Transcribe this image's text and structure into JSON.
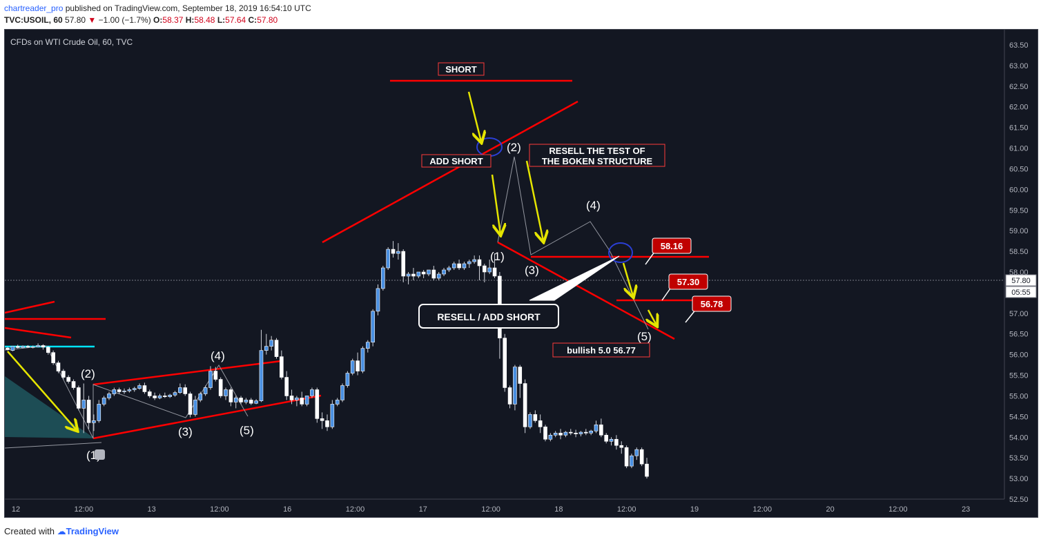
{
  "header": {
    "user": "chartreader_pro",
    "published_text": " published on TradingView.com, September 18, 2019 16:54:10 UTC",
    "symbol": "TVC:USOIL, 60",
    "last": "57.80",
    "change_arrow": "▼",
    "change": "−1.00 (−1.7%)",
    "o_label": "O:",
    "o": "58.37",
    "h_label": "H:",
    "h": "58.48",
    "l_label": "L:",
    "l": "57.64",
    "c_label": "C:",
    "c": "57.80"
  },
  "footer": {
    "created_with": "Created with",
    "brand": "TradingView"
  },
  "chart_data": {
    "type": "candlestick",
    "title": "CFDs on WTI Crude Oil, 60, TVC",
    "y_ticks": [
      "63.50",
      "63.00",
      "62.50",
      "62.00",
      "61.50",
      "61.00",
      "60.50",
      "60.00",
      "59.50",
      "59.00",
      "58.50",
      "58.00",
      "57.50",
      "57.00",
      "56.50",
      "56.00",
      "55.50",
      "55.00",
      "54.50",
      "54.00",
      "53.50",
      "53.00",
      "52.50"
    ],
    "ylim": [
      52.5,
      63.5
    ],
    "x_ticks": [
      "12",
      "12:00",
      "13",
      "12:00",
      "16",
      "12:00",
      "17",
      "12:00",
      "18",
      "12:00",
      "19",
      "12:00",
      "20",
      "12:00",
      "23"
    ],
    "last_price": "57.80",
    "countdown": "05:55",
    "candles": [
      [
        6.16,
        6.19,
        6.12,
        6.1
      ],
      [
        6.1,
        6.14,
        6.2,
        6.08
      ],
      [
        6.2,
        6.24,
        6.17,
        6.15
      ],
      [
        6.17,
        6.22,
        6.2,
        6.15
      ],
      [
        6.2,
        6.23,
        6.18,
        6.16
      ],
      [
        6.18,
        6.22,
        6.19,
        6.15
      ],
      [
        6.19,
        6.27,
        6.22,
        6.18
      ],
      [
        6.22,
        6.25,
        6.18,
        6.12
      ],
      [
        6.18,
        6.21,
        6.05,
        6.0
      ],
      [
        6.05,
        6.1,
        5.8,
        5.75
      ],
      [
        5.8,
        5.85,
        5.6,
        5.55
      ],
      [
        5.6,
        5.65,
        5.45,
        5.4
      ],
      [
        5.45,
        5.5,
        5.35,
        5.3
      ],
      [
        5.35,
        5.4,
        5.2,
        5.15
      ],
      [
        5.2,
        5.25,
        4.7,
        4.65
      ],
      [
        4.7,
        5.3,
        4.9,
        4.1
      ],
      [
        4.9,
        5.0,
        4.35,
        4.2
      ],
      [
        4.35,
        4.55,
        4.4,
        4.15
      ],
      [
        4.4,
        4.9,
        4.8,
        4.35
      ],
      [
        4.8,
        5.0,
        4.95,
        4.75
      ],
      [
        4.95,
        5.1,
        5.05,
        4.9
      ],
      [
        5.05,
        5.2,
        5.15,
        5.0
      ],
      [
        5.15,
        5.2,
        5.1,
        5.05
      ],
      [
        5.1,
        5.18,
        5.12,
        5.05
      ],
      [
        5.12,
        5.2,
        5.15,
        5.08
      ],
      [
        5.15,
        5.22,
        5.18,
        5.1
      ],
      [
        5.18,
        5.3,
        5.25,
        5.15
      ],
      [
        5.25,
        5.32,
        5.1,
        5.05
      ],
      [
        5.1,
        5.15,
        5.0,
        4.95
      ],
      [
        5.0,
        5.08,
        4.95,
        4.9
      ],
      [
        4.95,
        5.05,
        5.0,
        4.92
      ],
      [
        5.0,
        5.08,
        4.98,
        4.95
      ],
      [
        4.98,
        5.05,
        5.02,
        4.95
      ],
      [
        5.02,
        5.12,
        5.08,
        4.98
      ],
      [
        5.08,
        5.3,
        5.2,
        5.05
      ],
      [
        5.2,
        5.28,
        5.05,
        5.0
      ],
      [
        5.05,
        5.1,
        4.55,
        4.48
      ],
      [
        4.55,
        5.0,
        4.9,
        4.5
      ],
      [
        4.9,
        5.1,
        5.05,
        4.85
      ],
      [
        5.05,
        5.25,
        5.2,
        5.0
      ],
      [
        5.2,
        5.72,
        5.6,
        5.15
      ],
      [
        5.6,
        5.7,
        5.4,
        5.35
      ],
      [
        5.4,
        5.45,
        5.0,
        4.95
      ],
      [
        5.0,
        5.2,
        5.15,
        4.9
      ],
      [
        5.15,
        5.2,
        4.85,
        4.75
      ],
      [
        4.85,
        5.0,
        4.95,
        4.7
      ],
      [
        4.95,
        5.0,
        4.85,
        4.8
      ],
      [
        4.85,
        4.95,
        4.9,
        4.8
      ],
      [
        4.9,
        4.95,
        4.82,
        4.78
      ],
      [
        4.82,
        4.92,
        4.88,
        4.8
      ],
      [
        4.88,
        6.6,
        6.1,
        4.85
      ],
      [
        6.1,
        6.5,
        6.2,
        6.0
      ],
      [
        6.2,
        6.45,
        6.35,
        6.1
      ],
      [
        6.35,
        6.4,
        5.95,
        5.9
      ],
      [
        5.95,
        6.1,
        5.45,
        5.4
      ],
      [
        5.45,
        5.6,
        5.0,
        4.9
      ],
      [
        5.0,
        5.15,
        4.9,
        4.8
      ],
      [
        4.9,
        5.0,
        4.95,
        4.75
      ],
      [
        4.95,
        5.1,
        4.8,
        4.75
      ],
      [
        4.8,
        5.0,
        5.0,
        4.75
      ],
      [
        5.0,
        5.2,
        5.15,
        4.95
      ],
      [
        5.15,
        5.2,
        4.45,
        4.35
      ],
      [
        4.45,
        4.6,
        4.4,
        4.2
      ],
      [
        4.4,
        4.55,
        4.25,
        4.15
      ],
      [
        4.25,
        4.9,
        4.8,
        4.2
      ],
      [
        4.8,
        4.95,
        4.9,
        4.75
      ],
      [
        4.9,
        5.3,
        5.25,
        4.85
      ],
      [
        5.25,
        5.6,
        5.55,
        5.2
      ],
      [
        5.55,
        5.9,
        5.85,
        5.5
      ],
      [
        5.85,
        6.05,
        5.6,
        5.5
      ],
      [
        5.6,
        6.2,
        6.15,
        5.55
      ],
      [
        6.15,
        6.35,
        6.3,
        6.05
      ],
      [
        6.3,
        7.1,
        7.05,
        6.2
      ],
      [
        7.05,
        7.7,
        7.6,
        6.95
      ],
      [
        7.6,
        8.15,
        8.1,
        7.55
      ],
      [
        8.1,
        8.6,
        8.55,
        8.05
      ],
      [
        8.55,
        8.75,
        8.45,
        8.35
      ],
      [
        8.45,
        8.7,
        8.5,
        8.3
      ],
      [
        8.5,
        8.55,
        7.9,
        7.75
      ],
      [
        7.9,
        8.0,
        7.95,
        7.7
      ],
      [
        7.95,
        8.1,
        7.9,
        7.8
      ],
      [
        7.9,
        8.0,
        8.0,
        7.85
      ],
      [
        8.0,
        8.05,
        7.95,
        7.85
      ],
      [
        7.95,
        8.05,
        8.05,
        7.9
      ],
      [
        8.05,
        8.15,
        7.85,
        7.8
      ],
      [
        7.85,
        8.0,
        7.95,
        7.8
      ],
      [
        7.95,
        8.1,
        8.05,
        7.9
      ],
      [
        8.05,
        8.15,
        8.1,
        8.0
      ],
      [
        8.1,
        8.25,
        8.2,
        8.05
      ],
      [
        8.2,
        8.3,
        8.1,
        8.05
      ],
      [
        8.1,
        8.25,
        8.2,
        8.05
      ],
      [
        8.2,
        8.3,
        8.25,
        8.1
      ],
      [
        8.25,
        8.4,
        8.3,
        8.2
      ],
      [
        8.3,
        8.4,
        8.15,
        7.8
      ],
      [
        8.15,
        8.2,
        8.0,
        7.75
      ],
      [
        8.0,
        8.3,
        8.1,
        7.95
      ],
      [
        8.1,
        8.45,
        7.9,
        7.85
      ],
      [
        7.9,
        8.0,
        6.4,
        5.9
      ],
      [
        6.4,
        6.5,
        5.2,
        5.1
      ],
      [
        5.2,
        5.25,
        4.8,
        4.7
      ],
      [
        4.8,
        5.75,
        5.7,
        4.65
      ],
      [
        5.7,
        5.75,
        5.3,
        4.95
      ],
      [
        5.3,
        5.4,
        4.25,
        4.1
      ],
      [
        4.25,
        4.6,
        4.55,
        4.2
      ],
      [
        4.55,
        4.65,
        4.4,
        4.35
      ],
      [
        4.4,
        4.55,
        4.25,
        4.1
      ],
      [
        4.25,
        4.3,
        3.95,
        3.9
      ],
      [
        3.95,
        4.1,
        4.05,
        3.9
      ],
      [
        4.05,
        4.15,
        4.1,
        4.0
      ],
      [
        4.1,
        4.2,
        4.05,
        3.95
      ],
      [
        4.05,
        4.15,
        4.12,
        4.0
      ],
      [
        4.12,
        4.2,
        4.1,
        4.05
      ],
      [
        4.1,
        4.18,
        4.08,
        4.0
      ],
      [
        4.08,
        4.15,
        4.12,
        4.02
      ],
      [
        4.12,
        4.2,
        4.1,
        4.05
      ],
      [
        4.1,
        4.18,
        4.15,
        4.05
      ],
      [
        4.15,
        4.4,
        4.3,
        4.1
      ],
      [
        4.3,
        4.45,
        4.05,
        4.0
      ],
      [
        4.05,
        4.1,
        3.9,
        3.85
      ],
      [
        3.9,
        4.0,
        3.95,
        3.8
      ],
      [
        3.95,
        4.05,
        3.8,
        3.7
      ],
      [
        3.8,
        3.9,
        3.75,
        3.6
      ],
      [
        3.75,
        3.8,
        3.3,
        3.25
      ],
      [
        3.3,
        3.6,
        3.55,
        3.25
      ],
      [
        3.55,
        3.75,
        3.7,
        3.45
      ],
      [
        3.7,
        3.75,
        3.35,
        3.3
      ],
      [
        3.35,
        3.5,
        3.05,
        3.0
      ]
    ],
    "price_markers": [
      "58.16",
      "57.30",
      "56.78"
    ]
  },
  "annotations": {
    "short": "SHORT",
    "add_short": "ADD SHORT",
    "resell_test_1": "RESELL THE TEST OF",
    "resell_test_2": "THE BOKEN STRUCTURE",
    "resell_add_short": "RESELL / ADD SHORT",
    "bullish": "bullish 5.0 56.77",
    "wave_labels": [
      "(1)",
      "(2)",
      "(3)",
      "(4)",
      "(5)",
      "(1)",
      "(2)",
      "(3)",
      "(4)",
      "(5)"
    ]
  },
  "colors": {
    "bg": "#131722",
    "up": "#4a90e2",
    "down": "#ffffff",
    "trend": "#ff0000",
    "arrow": "#e5e500",
    "cyan": "#00ffff",
    "label_red": "#c00000"
  }
}
